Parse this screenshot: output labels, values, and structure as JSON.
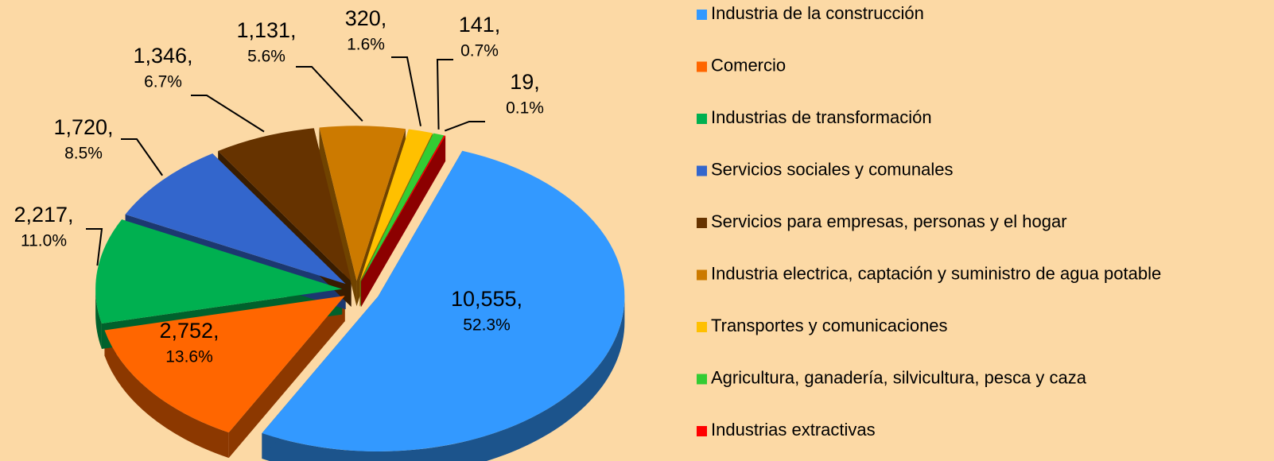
{
  "chart_data": {
    "type": "pie",
    "categories": [
      "Industria de la construcción",
      "Comercio",
      "Industrias de transformación",
      "Servicios sociales y comunales",
      "Servicios para empresas, personas y el hogar",
      "Industria electrica, captación y suministro de agua potable",
      "Transportes y comunicaciones",
      "Agricultura, ganadería, silvicultura, pesca y caza",
      "Industrias extractivas"
    ],
    "values": [
      10555,
      2752,
      2217,
      1720,
      1346,
      1131,
      320,
      141,
      19
    ],
    "value_labels": [
      "10,555,",
      "2,752,",
      "2,217,",
      "1,720,",
      "1,346,",
      "1,131,",
      "320,",
      "141,",
      "19,"
    ],
    "percentages": [
      52.3,
      13.6,
      11.0,
      8.5,
      6.7,
      5.6,
      1.6,
      0.7,
      0.1
    ],
    "percentage_labels": [
      "52.3%",
      "13.6%",
      "11.0%",
      "8.5%",
      "6.7%",
      "5.6%",
      "1.6%",
      "0.7%",
      "0.1%"
    ],
    "colors": [
      "#3399ff",
      "#ff6600",
      "#00b050",
      "#3366cc",
      "#663300",
      "#cc7a00",
      "#ffc000",
      "#33cc33",
      "#ff0000"
    ],
    "legend": "right"
  }
}
